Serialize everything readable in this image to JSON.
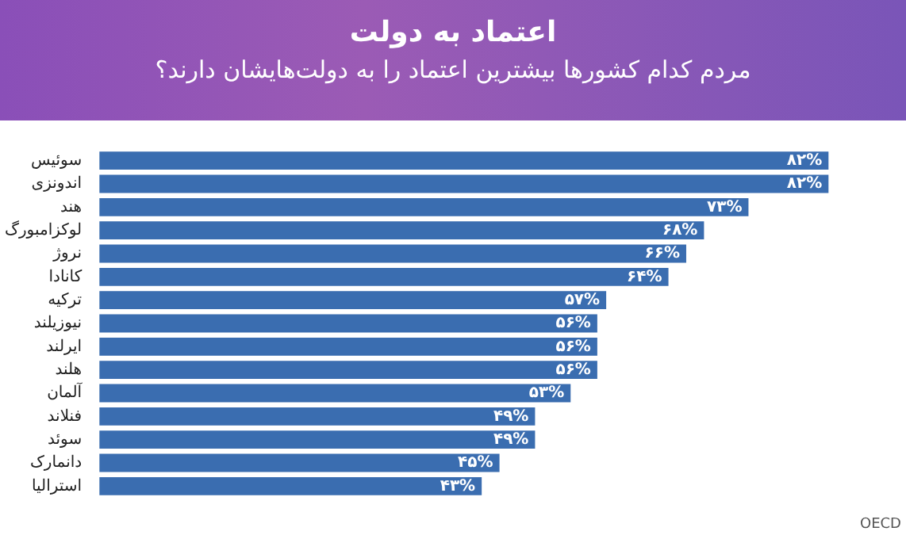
{
  "chart_data": {
    "type": "bar",
    "orientation": "horizontal",
    "title": "اعتماد به دولت",
    "subtitle": "مردم کدام کشورها بیشترین اعتماد را به دولت‌هایشان دارند؟",
    "categories": [
      "سوئیس",
      "اندونزی",
      "هند",
      "لوکزامبورگ",
      "نروژ",
      "کانادا",
      "ترکیه",
      "نیوزیلند",
      "ایرلند",
      "هلند",
      "آلمان",
      "فنلاند",
      "سوئد",
      "دانمارک",
      "استرالیا"
    ],
    "values": [
      82,
      82,
      73,
      68,
      66,
      64,
      57,
      56,
      56,
      56,
      53,
      49,
      49,
      45,
      43
    ],
    "value_labels": [
      "۸۲%",
      "۸۲%",
      "۷۳%",
      "۶۸%",
      "۶۶%",
      "۶۴%",
      "۵۷%",
      "۵۶%",
      "۵۶%",
      "۵۶%",
      "۵۳%",
      "۴۹%",
      "۴۹%",
      "۴۵%",
      "۴۳%"
    ],
    "color": "#3a6db0",
    "tick_labels": "y",
    "legend": false,
    "annotations": [
      "OECD"
    ]
  }
}
